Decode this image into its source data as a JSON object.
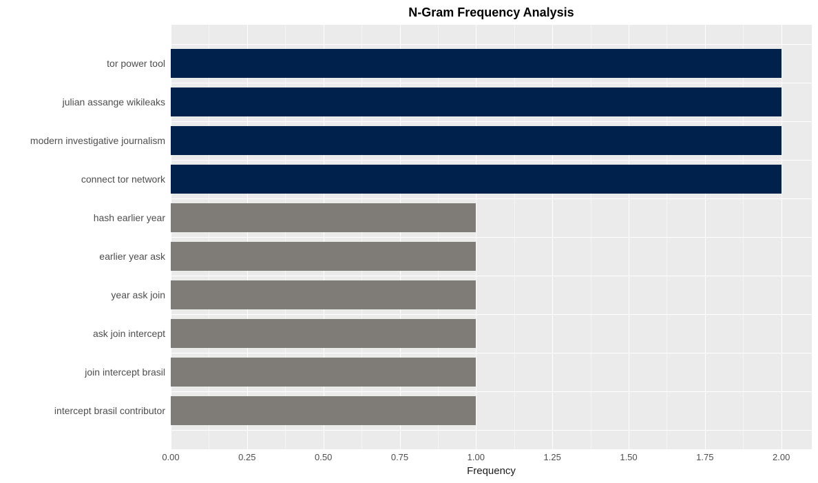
{
  "chart": {
    "type": "bar-horizontal",
    "title": "N-Gram Frequency Analysis",
    "title_fontsize": 18,
    "title_fontweight": "bold",
    "xlabel": "Frequency",
    "xlabel_fontsize": 15,
    "background_color": "#ffffff",
    "panel_bg_color": "#ebebeb",
    "grid_color_major": "#ffffff",
    "grid_color_minor": "#f5f5f5",
    "tick_label_color": "#4d4d4d",
    "tick_label_fontsize": 13,
    "y_label_fontsize": 14,
    "xlim_min": 0,
    "xlim_max": 2.1,
    "x_ticks": [
      {
        "value": 0.0,
        "label": "0.00"
      },
      {
        "value": 0.25,
        "label": "0.25"
      },
      {
        "value": 0.5,
        "label": "0.50"
      },
      {
        "value": 0.75,
        "label": "0.75"
      },
      {
        "value": 1.0,
        "label": "1.00"
      },
      {
        "value": 1.25,
        "label": "1.25"
      },
      {
        "value": 1.5,
        "label": "1.50"
      },
      {
        "value": 1.75,
        "label": "1.75"
      },
      {
        "value": 2.0,
        "label": "2.00"
      }
    ],
    "x_minor_ticks": [
      0.125,
      0.375,
      0.625,
      0.875,
      1.125,
      1.375,
      1.625,
      1.875
    ],
    "bar_colors": {
      "high": "#00214b",
      "low": "#7f7c77"
    },
    "bar_rel_height": 0.74,
    "bars": [
      {
        "label": "tor power tool",
        "value": 2.0,
        "color_key": "high"
      },
      {
        "label": "julian assange wikileaks",
        "value": 2.0,
        "color_key": "high"
      },
      {
        "label": "modern investigative journalism",
        "value": 2.0,
        "color_key": "high"
      },
      {
        "label": "connect tor network",
        "value": 2.0,
        "color_key": "high"
      },
      {
        "label": "hash earlier year",
        "value": 1.0,
        "color_key": "low"
      },
      {
        "label": "earlier year ask",
        "value": 1.0,
        "color_key": "low"
      },
      {
        "label": "year ask join",
        "value": 1.0,
        "color_key": "low"
      },
      {
        "label": "ask join intercept",
        "value": 1.0,
        "color_key": "low"
      },
      {
        "label": "join intercept brasil",
        "value": 1.0,
        "color_key": "low"
      },
      {
        "label": "intercept brasil contributor",
        "value": 1.0,
        "color_key": "low"
      }
    ]
  }
}
